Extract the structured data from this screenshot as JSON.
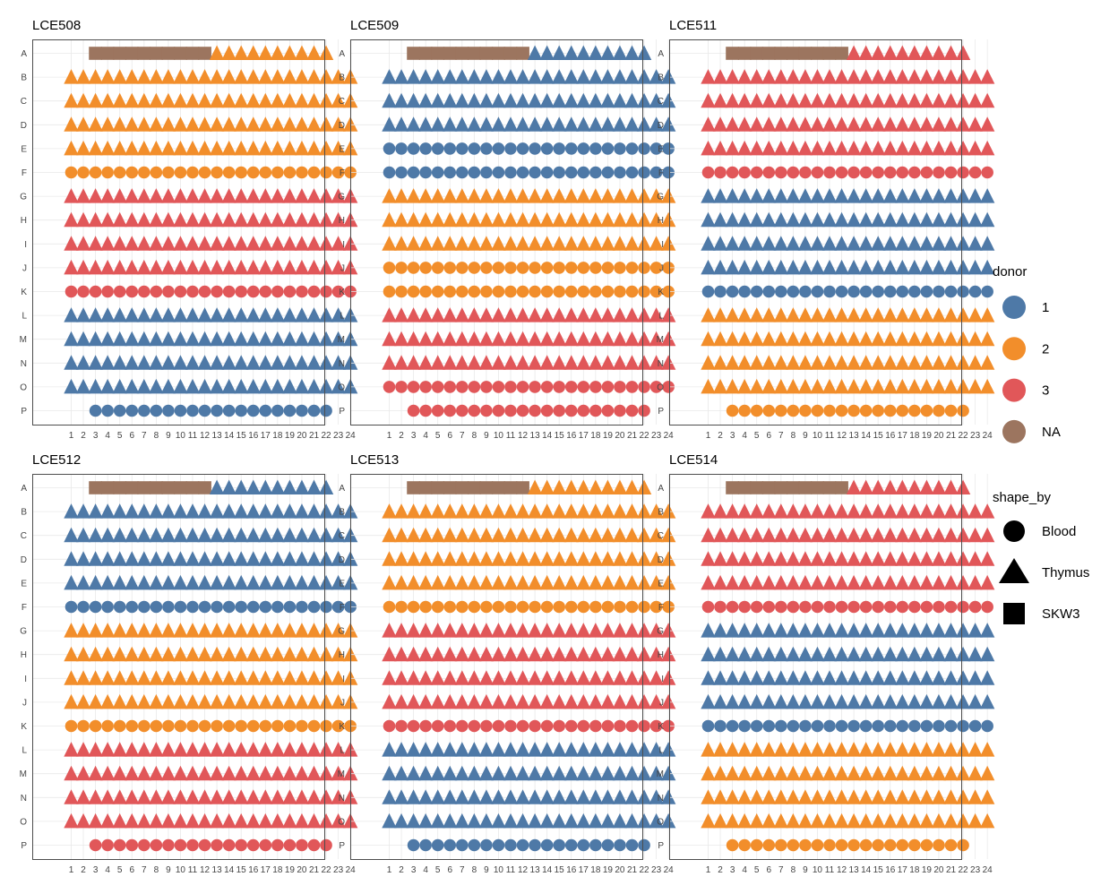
{
  "chart_data": {
    "type": "scatter",
    "description_note": "",
    "rows": [
      "A",
      "B",
      "C",
      "D",
      "E",
      "F",
      "G",
      "H",
      "I",
      "J",
      "K",
      "L",
      "M",
      "N",
      "O",
      "P"
    ],
    "columns": [
      "1",
      "2",
      "3",
      "4",
      "5",
      "6",
      "7",
      "8",
      "9",
      "10",
      "11",
      "12",
      "13",
      "14",
      "15",
      "16",
      "17",
      "18",
      "19",
      "20",
      "21",
      "22",
      "23",
      "24"
    ],
    "colors": {
      "1": "#4E79A7",
      "2": "#F28E2B",
      "3": "#E15759",
      "NA": "#9C755F"
    },
    "grid": true,
    "legend_position": "right",
    "legend": {
      "color_title": "donor",
      "color_entries": [
        {
          "key": "1",
          "label": "1"
        },
        {
          "key": "2",
          "label": "2"
        },
        {
          "key": "3",
          "label": "3"
        },
        {
          "key": "NA",
          "label": "NA"
        }
      ],
      "shape_title": "shape_by",
      "shape_entries": [
        {
          "key": "Blood",
          "label": "Blood",
          "shape": "circle"
        },
        {
          "key": "Thymus",
          "label": "Thymus",
          "shape": "triangle"
        },
        {
          "key": "SKW3",
          "label": "SKW3",
          "shape": "square"
        }
      ]
    },
    "panels": [
      {
        "title": "LCE508",
        "row_A": {
          "skw3_cols": [
            3,
            12
          ],
          "thymus_cols": [
            13,
            22
          ],
          "donor": "2"
        },
        "row_P": {
          "blood_cols": [
            3,
            22
          ],
          "donor": "1"
        },
        "full_rows": [
          {
            "row": "B",
            "shape": "Thymus",
            "donor": "2"
          },
          {
            "row": "C",
            "shape": "Thymus",
            "donor": "2"
          },
          {
            "row": "D",
            "shape": "Thymus",
            "donor": "2"
          },
          {
            "row": "E",
            "shape": "Thymus",
            "donor": "2"
          },
          {
            "row": "F",
            "shape": "Blood",
            "donor": "2"
          },
          {
            "row": "G",
            "shape": "Thymus",
            "donor": "3"
          },
          {
            "row": "H",
            "shape": "Thymus",
            "donor": "3"
          },
          {
            "row": "I",
            "shape": "Thymus",
            "donor": "3"
          },
          {
            "row": "J",
            "shape": "Thymus",
            "donor": "3"
          },
          {
            "row": "K",
            "shape": "Blood",
            "donor": "3"
          },
          {
            "row": "L",
            "shape": "Thymus",
            "donor": "1"
          },
          {
            "row": "M",
            "shape": "Thymus",
            "donor": "1"
          },
          {
            "row": "N",
            "shape": "Thymus",
            "donor": "1"
          },
          {
            "row": "O",
            "shape": "Thymus",
            "donor": "1"
          }
        ]
      },
      {
        "title": "LCE509",
        "row_A": {
          "skw3_cols": [
            3,
            12
          ],
          "thymus_cols": [
            13,
            22
          ],
          "donor": "1"
        },
        "row_P": {
          "blood_cols": [
            3,
            22
          ],
          "donor": "3"
        },
        "full_rows": [
          {
            "row": "B",
            "shape": "Thymus",
            "donor": "1"
          },
          {
            "row": "C",
            "shape": "Thymus",
            "donor": "1"
          },
          {
            "row": "D",
            "shape": "Thymus",
            "donor": "1"
          },
          {
            "row": "E",
            "shape": "Blood",
            "donor": "1"
          },
          {
            "row": "F",
            "shape": "Blood",
            "donor": "1"
          },
          {
            "row": "G",
            "shape": "Thymus",
            "donor": "2"
          },
          {
            "row": "H",
            "shape": "Thymus",
            "donor": "2"
          },
          {
            "row": "I",
            "shape": "Thymus",
            "donor": "2"
          },
          {
            "row": "J",
            "shape": "Blood",
            "donor": "2"
          },
          {
            "row": "K",
            "shape": "Blood",
            "donor": "2"
          },
          {
            "row": "L",
            "shape": "Thymus",
            "donor": "3"
          },
          {
            "row": "M",
            "shape": "Thymus",
            "donor": "3"
          },
          {
            "row": "N",
            "shape": "Thymus",
            "donor": "3"
          },
          {
            "row": "O",
            "shape": "Blood",
            "donor": "3"
          }
        ]
      },
      {
        "title": "LCE511",
        "row_A": {
          "skw3_cols": [
            3,
            12
          ],
          "thymus_cols": [
            13,
            22
          ],
          "donor": "3"
        },
        "row_P": {
          "blood_cols": [
            3,
            22
          ],
          "donor": "2"
        },
        "full_rows": [
          {
            "row": "B",
            "shape": "Thymus",
            "donor": "3"
          },
          {
            "row": "C",
            "shape": "Thymus",
            "donor": "3"
          },
          {
            "row": "D",
            "shape": "Thymus",
            "donor": "3"
          },
          {
            "row": "E",
            "shape": "Thymus",
            "donor": "3"
          },
          {
            "row": "F",
            "shape": "Blood",
            "donor": "3"
          },
          {
            "row": "G",
            "shape": "Thymus",
            "donor": "1"
          },
          {
            "row": "H",
            "shape": "Thymus",
            "donor": "1"
          },
          {
            "row": "I",
            "shape": "Thymus",
            "donor": "1"
          },
          {
            "row": "J",
            "shape": "Thymus",
            "donor": "1"
          },
          {
            "row": "K",
            "shape": "Blood",
            "donor": "1"
          },
          {
            "row": "L",
            "shape": "Thymus",
            "donor": "2"
          },
          {
            "row": "M",
            "shape": "Thymus",
            "donor": "2"
          },
          {
            "row": "N",
            "shape": "Thymus",
            "donor": "2"
          },
          {
            "row": "O",
            "shape": "Thymus",
            "donor": "2"
          }
        ]
      },
      {
        "title": "LCE512",
        "row_A": {
          "skw3_cols": [
            3,
            12
          ],
          "thymus_cols": [
            13,
            22
          ],
          "donor": "1"
        },
        "row_P": {
          "blood_cols": [
            3,
            22
          ],
          "donor": "3"
        },
        "full_rows": [
          {
            "row": "B",
            "shape": "Thymus",
            "donor": "1"
          },
          {
            "row": "C",
            "shape": "Thymus",
            "donor": "1"
          },
          {
            "row": "D",
            "shape": "Thymus",
            "donor": "1"
          },
          {
            "row": "E",
            "shape": "Thymus",
            "donor": "1"
          },
          {
            "row": "F",
            "shape": "Blood",
            "donor": "1"
          },
          {
            "row": "G",
            "shape": "Thymus",
            "donor": "2"
          },
          {
            "row": "H",
            "shape": "Thymus",
            "donor": "2"
          },
          {
            "row": "I",
            "shape": "Thymus",
            "donor": "2"
          },
          {
            "row": "J",
            "shape": "Thymus",
            "donor": "2"
          },
          {
            "row": "K",
            "shape": "Blood",
            "donor": "2"
          },
          {
            "row": "L",
            "shape": "Thymus",
            "donor": "3"
          },
          {
            "row": "M",
            "shape": "Thymus",
            "donor": "3"
          },
          {
            "row": "N",
            "shape": "Thymus",
            "donor": "3"
          },
          {
            "row": "O",
            "shape": "Thymus",
            "donor": "3"
          }
        ]
      },
      {
        "title": "LCE513",
        "row_A": {
          "skw3_cols": [
            3,
            12
          ],
          "thymus_cols": [
            13,
            22
          ],
          "donor": "2"
        },
        "row_P": {
          "blood_cols": [
            3,
            22
          ],
          "donor": "1"
        },
        "full_rows": [
          {
            "row": "B",
            "shape": "Thymus",
            "donor": "2"
          },
          {
            "row": "C",
            "shape": "Thymus",
            "donor": "2"
          },
          {
            "row": "D",
            "shape": "Thymus",
            "donor": "2"
          },
          {
            "row": "E",
            "shape": "Thymus",
            "donor": "2"
          },
          {
            "row": "F",
            "shape": "Blood",
            "donor": "2"
          },
          {
            "row": "G",
            "shape": "Thymus",
            "donor": "3"
          },
          {
            "row": "H",
            "shape": "Thymus",
            "donor": "3"
          },
          {
            "row": "I",
            "shape": "Thymus",
            "donor": "3"
          },
          {
            "row": "J",
            "shape": "Thymus",
            "donor": "3"
          },
          {
            "row": "K",
            "shape": "Blood",
            "donor": "3"
          },
          {
            "row": "L",
            "shape": "Thymus",
            "donor": "1"
          },
          {
            "row": "M",
            "shape": "Thymus",
            "donor": "1"
          },
          {
            "row": "N",
            "shape": "Thymus",
            "donor": "1"
          },
          {
            "row": "O",
            "shape": "Thymus",
            "donor": "1"
          }
        ]
      },
      {
        "title": "LCE514",
        "row_A": {
          "skw3_cols": [
            3,
            12
          ],
          "thymus_cols": [
            13,
            22
          ],
          "donor": "3"
        },
        "row_P": {
          "blood_cols": [
            3,
            22
          ],
          "donor": "2"
        },
        "full_rows": [
          {
            "row": "B",
            "shape": "Thymus",
            "donor": "3"
          },
          {
            "row": "C",
            "shape": "Thymus",
            "donor": "3"
          },
          {
            "row": "D",
            "shape": "Thymus",
            "donor": "3"
          },
          {
            "row": "E",
            "shape": "Thymus",
            "donor": "3"
          },
          {
            "row": "F",
            "shape": "Blood",
            "donor": "3"
          },
          {
            "row": "G",
            "shape": "Thymus",
            "donor": "1"
          },
          {
            "row": "H",
            "shape": "Thymus",
            "donor": "1"
          },
          {
            "row": "I",
            "shape": "Thymus",
            "donor": "1"
          },
          {
            "row": "J",
            "shape": "Thymus",
            "donor": "1"
          },
          {
            "row": "K",
            "shape": "Blood",
            "donor": "1"
          },
          {
            "row": "L",
            "shape": "Thymus",
            "donor": "2"
          },
          {
            "row": "M",
            "shape": "Thymus",
            "donor": "2"
          },
          {
            "row": "N",
            "shape": "Thymus",
            "donor": "2"
          },
          {
            "row": "O",
            "shape": "Thymus",
            "donor": "2"
          }
        ]
      }
    ]
  }
}
